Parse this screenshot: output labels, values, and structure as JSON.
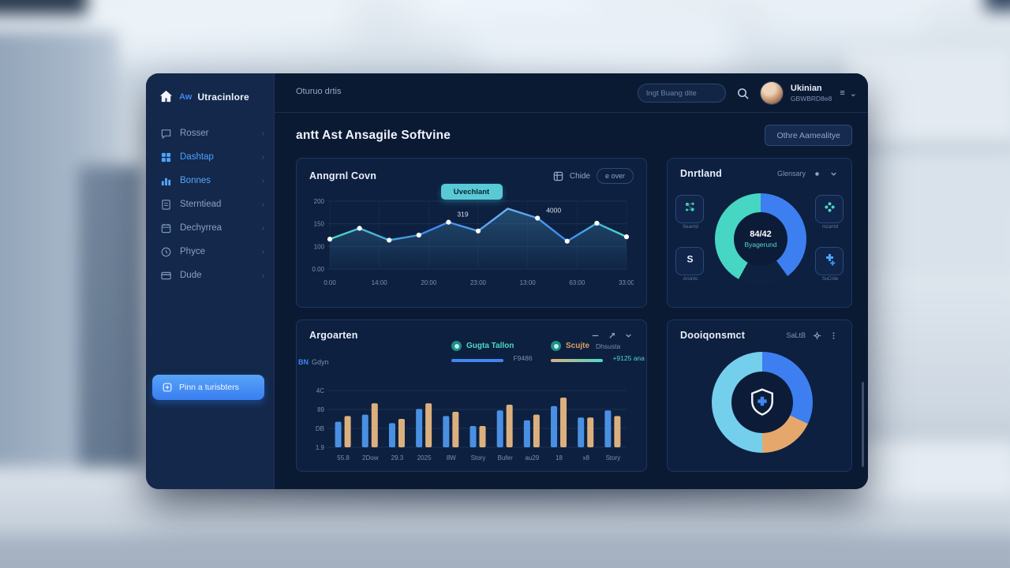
{
  "logo": {
    "prefix": "Aw",
    "name": "Utracinlore"
  },
  "sidebar": {
    "items": [
      {
        "label": "Rosser",
        "icon": "chat",
        "state": "normal"
      },
      {
        "label": "Dashtap",
        "icon": "dashboard",
        "state": "active"
      },
      {
        "label": "Bonnes",
        "icon": "chart",
        "state": "hot"
      },
      {
        "label": "Sterntiead",
        "icon": "document",
        "state": "normal"
      },
      {
        "label": "Dechyrrea",
        "icon": "calendar",
        "state": "normal"
      },
      {
        "label": "Phyce",
        "icon": "clock",
        "state": "normal"
      },
      {
        "label": "Dude",
        "icon": "card",
        "state": "normal"
      }
    ],
    "cta": "Pinn a turisbters"
  },
  "topbar": {
    "breadcrumb": "Oturuo drtis",
    "search_placeholder": "Ingt Buang dite",
    "user_name": "Ukinian",
    "user_subtitle": "GBWBRD8e8",
    "menu_glyph": "≡",
    "more_glyph": "⌄"
  },
  "page": {
    "title": "antt Ast Ansagile Softvine",
    "action": "Othre Aamealitye"
  },
  "panels": {
    "line": {
      "title": "Anngrnl Covn",
      "tool_label": "Chide",
      "tool_button": "e over",
      "badge": "Uvechlant"
    },
    "donut1": {
      "title": "Dnrtland",
      "menu": "Glensary",
      "center_value": "84/42",
      "center_label": "Byagerund",
      "tiles": [
        {
          "label": "Searrtd",
          "icon": "molecule"
        },
        {
          "label": "mzarrtd",
          "icon": "flower"
        },
        {
          "label": "Arsinto",
          "icon": "s-shape"
        },
        {
          "label": "SuCrde",
          "icon": "cross-cluster"
        }
      ]
    },
    "bars": {
      "title": "Argoarten",
      "axis_tag": "BN",
      "axis_tag_sub": "Gdyn",
      "legends": [
        {
          "name": "Gugta Tallon",
          "sub": "",
          "value": "F9486"
        },
        {
          "name": "Scujte",
          "sub": "Dhsusta",
          "value": "+9125 ana"
        }
      ]
    },
    "donut2": {
      "title": "Dooiqonsmct",
      "menu": "SaLtB"
    }
  },
  "chart_data": [
    {
      "type": "line",
      "title": "Anngrnl Covn",
      "x_ticks": [
        "0:00",
        "14:00",
        "20:00",
        "23:00",
        "13:00",
        "63:00",
        "33:00"
      ],
      "y_ticks": [
        "200",
        "150",
        "100",
        "0.00"
      ],
      "points": [
        88,
        120,
        85,
        100,
        138,
        112,
        178,
        150,
        82,
        135,
        95
      ],
      "ylim": [
        0,
        200
      ],
      "grid": true,
      "annotations": [
        {
          "index": 4,
          "text": "319"
        },
        {
          "index": 7,
          "text": "4000"
        }
      ],
      "colors": {
        "teal": "#4fd8c4",
        "blue": "#3f86f0",
        "marker": "#ffffff",
        "area": "#3e7fa8"
      }
    },
    {
      "type": "pie",
      "variant": "donut",
      "title": "Dnrtland",
      "segments": [
        {
          "name": "blue",
          "value": 40,
          "color": "#3d7ff0"
        },
        {
          "name": "gap",
          "value": 18,
          "color": "#0e2140"
        },
        {
          "name": "teal",
          "value": 42,
          "color": "#47d6c3"
        }
      ],
      "center_value": "84/42",
      "center_label": "Byagerund"
    },
    {
      "type": "bar",
      "title": "Argoarten",
      "categories": [
        "55.8",
        "2Dow",
        "29.3",
        "2025",
        "8W",
        "Story",
        "Bufer",
        "au29",
        "18",
        "x8",
        "Story"
      ],
      "y_ticks": [
        "4C",
        "89",
        "DB",
        "1.9"
      ],
      "series": [
        {
          "name": "Gugta Tallon",
          "color": "#4a90e2",
          "values": [
            18,
            23,
            17,
            27,
            22,
            15,
            26,
            19,
            29,
            21,
            26
          ]
        },
        {
          "name": "Scujte",
          "color": "#dcb07e",
          "values": [
            22,
            31,
            20,
            31,
            25,
            15,
            30,
            23,
            35,
            21,
            22
          ]
        }
      ],
      "ylim": [
        0,
        40
      ],
      "grid": true,
      "legend_position": "top"
    },
    {
      "type": "pie",
      "variant": "donut",
      "title": "Dooiqonsmct",
      "segments": [
        {
          "name": "blue",
          "value": 32,
          "color": "#3d7ff0"
        },
        {
          "name": "orange",
          "value": 18,
          "color": "#e5a76b"
        },
        {
          "name": "light-blue",
          "value": 50,
          "color": "#74cfec"
        }
      ],
      "center_icon": "shield-cross"
    }
  ],
  "colors": {
    "accent_blue": "#3f86f0",
    "teal": "#4fd8c4",
    "tan": "#dcb07e",
    "badge": "#59c9d6",
    "panel_bg": "#0d2040",
    "screen_bg": "#0b1a33"
  }
}
